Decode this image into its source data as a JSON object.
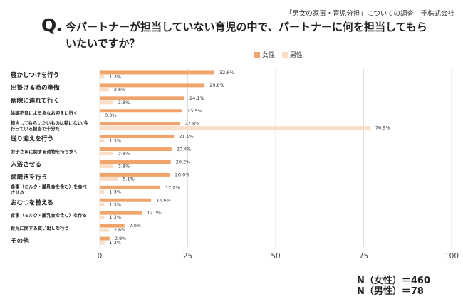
{
  "header": {
    "source": "「男女の家事・育児分担」についての調査｜千株式会社",
    "q_mark": "Q.",
    "question": "今パートナーが担当していない育児の中で、パートナーに何を担当してもらいたいですか？"
  },
  "colors": {
    "female": "#f0a46b",
    "male": "#fbdcc5",
    "grid": "#e0e0e0"
  },
  "footer": {
    "n_female": "N（女性）＝460",
    "n_male": "N（男性）＝78"
  },
  "chart_data": {
    "type": "bar",
    "orientation": "horizontal",
    "title": "今パートナーが担当していない育児の中で、パートナーに何を担当してもらいたいですか？",
    "xlim": [
      0,
      100
    ],
    "xticks": [
      0,
      25,
      50,
      75,
      100
    ],
    "legend": [
      "女性",
      "男性"
    ],
    "legend_position": "top-right",
    "categories": [
      "寝かしつけを行う",
      "出掛ける時の準備",
      "病院に連れて行く",
      "体調不良による急なお迎えに行く",
      "担当してもらいたいものは特にない/今行っている担当で十分だ",
      "送り迎えを行う",
      "お子さまに関する荷物を持ち歩く",
      "入浴させる",
      "歯磨きを行う",
      "食事（ミルク・離乳食を含む）を食べさせる",
      "おむつを替える",
      "食事（ミルク・離乳食を含む）を作る",
      "育児に関する買い出しを行う",
      "その他"
    ],
    "category_label_lines": [
      [
        "寝かしつけを行う"
      ],
      [
        "出掛ける時の準備"
      ],
      [
        "病院に連れて行く"
      ],
      [
        "体調不良による急なお迎えに行く"
      ],
      [
        "担当してもらいたいものは特にない/今",
        "行っている担当で十分だ"
      ],
      [
        "送り迎えを行う"
      ],
      [
        "お子さまに関する荷物を持ち歩く"
      ],
      [
        "入浴させる"
      ],
      [
        "歯磨きを行う"
      ],
      [
        "食事（ミルク・離乳食を含む）を食べ",
        "させる"
      ],
      [
        "おむつを替える"
      ],
      [
        "食事（ミルク・離乳食を含む）を作る"
      ],
      [
        "育児に関する買い出しを行う"
      ],
      [
        "その他"
      ]
    ],
    "label_emphasis": [
      true,
      true,
      true,
      false,
      false,
      true,
      false,
      true,
      true,
      false,
      true,
      false,
      false,
      true
    ],
    "series": [
      {
        "name": "女性",
        "values": [
          32.6,
          29.8,
          24.1,
          23.5,
          22.8,
          21.1,
          20.4,
          20.2,
          20.0,
          17.2,
          14.6,
          12.0,
          7.0,
          2.8
        ]
      },
      {
        "name": "男性",
        "values": [
          1.3,
          2.6,
          3.8,
          0.0,
          76.9,
          1.3,
          3.8,
          3.8,
          5.1,
          1.3,
          1.3,
          1.3,
          2.6,
          1.3
        ]
      }
    ]
  }
}
